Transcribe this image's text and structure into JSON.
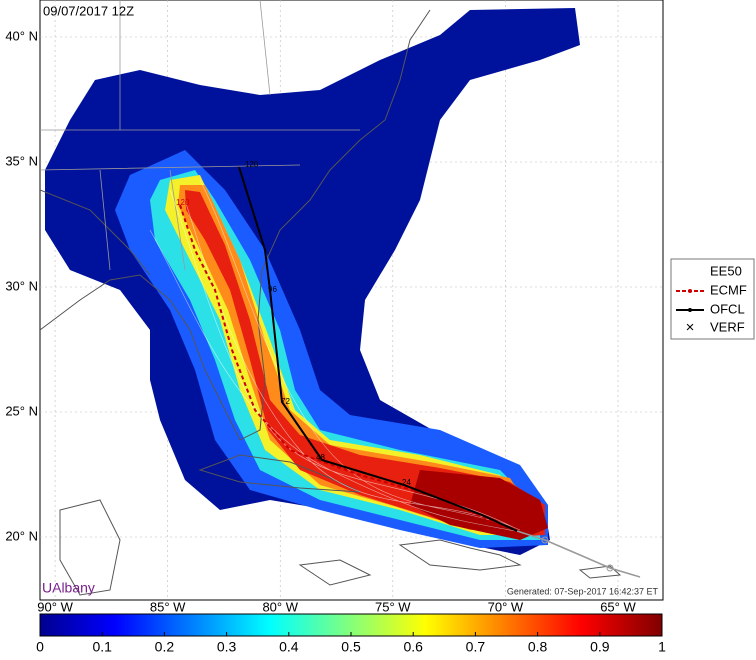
{
  "header": {
    "title": "09/07/2017 12Z"
  },
  "map": {
    "lat_range": [
      17.48,
      41.48
    ],
    "lon_range": [
      -90.67,
      -63.0
    ],
    "lat_ticks": [
      {
        "value": 20,
        "label": "20° N"
      },
      {
        "value": 25,
        "label": "25° N"
      },
      {
        "value": 30,
        "label": "30° N"
      },
      {
        "value": 35,
        "label": "35° N"
      },
      {
        "value": 40,
        "label": "40° N"
      }
    ],
    "lon_ticks": [
      {
        "value": -90,
        "label": "90° W"
      },
      {
        "value": -85,
        "label": "85° W"
      },
      {
        "value": -80,
        "label": "80° W"
      },
      {
        "value": -75,
        "label": "75° W"
      },
      {
        "value": -70,
        "label": "70° W"
      },
      {
        "value": -65,
        "label": "65° W"
      }
    ],
    "track_labels": [
      "120",
      "96",
      "72",
      "48",
      "24",
      "120"
    ]
  },
  "legend": {
    "entries": [
      "EE50",
      "ECMF",
      "OFCL",
      "VERF"
    ]
  },
  "colorbar": {
    "range": [
      0,
      1
    ],
    "ticks": [
      0,
      0.1,
      0.2,
      0.3,
      0.4,
      0.5,
      0.6,
      0.7,
      0.8,
      0.9,
      1
    ]
  },
  "footer": {
    "brand": "UAlbany",
    "generated": "Generated: 07-Sep-2017 16:42:37 ET"
  }
}
